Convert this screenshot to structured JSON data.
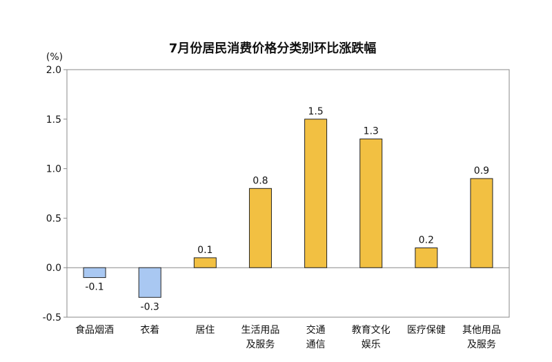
{
  "chart_data": {
    "type": "bar",
    "title": "7月份居民消费价格分类别环比涨跌幅",
    "unit_label": "(%)",
    "ylim": [
      -0.5,
      2.0
    ],
    "yticks": [
      "2.0",
      "1.5",
      "1.0",
      "0.5",
      "0.0",
      "-0.5"
    ],
    "ytick_values": [
      2.0,
      1.5,
      1.0,
      0.5,
      0.0,
      -0.5
    ],
    "grid": false,
    "categories": [
      [
        "食品烟酒"
      ],
      [
        "衣着"
      ],
      [
        "居住"
      ],
      [
        "生活用品",
        "及服务"
      ],
      [
        "交通",
        "通信"
      ],
      [
        "教育文化",
        "娱乐"
      ],
      [
        "医疗保健"
      ],
      [
        "其他用品",
        "及服务"
      ]
    ],
    "values": [
      -0.1,
      -0.3,
      0.1,
      0.8,
      1.5,
      1.3,
      0.2,
      0.9
    ],
    "value_labels": [
      "-0.1",
      "-0.3",
      "0.1",
      "0.8",
      "1.5",
      "1.3",
      "0.2",
      "0.9"
    ],
    "colors": {
      "positive": "#F2C042",
      "negative": "#A9C8F2",
      "bar_stroke": "#222222",
      "axis": "#888888",
      "text": "#111111"
    }
  }
}
